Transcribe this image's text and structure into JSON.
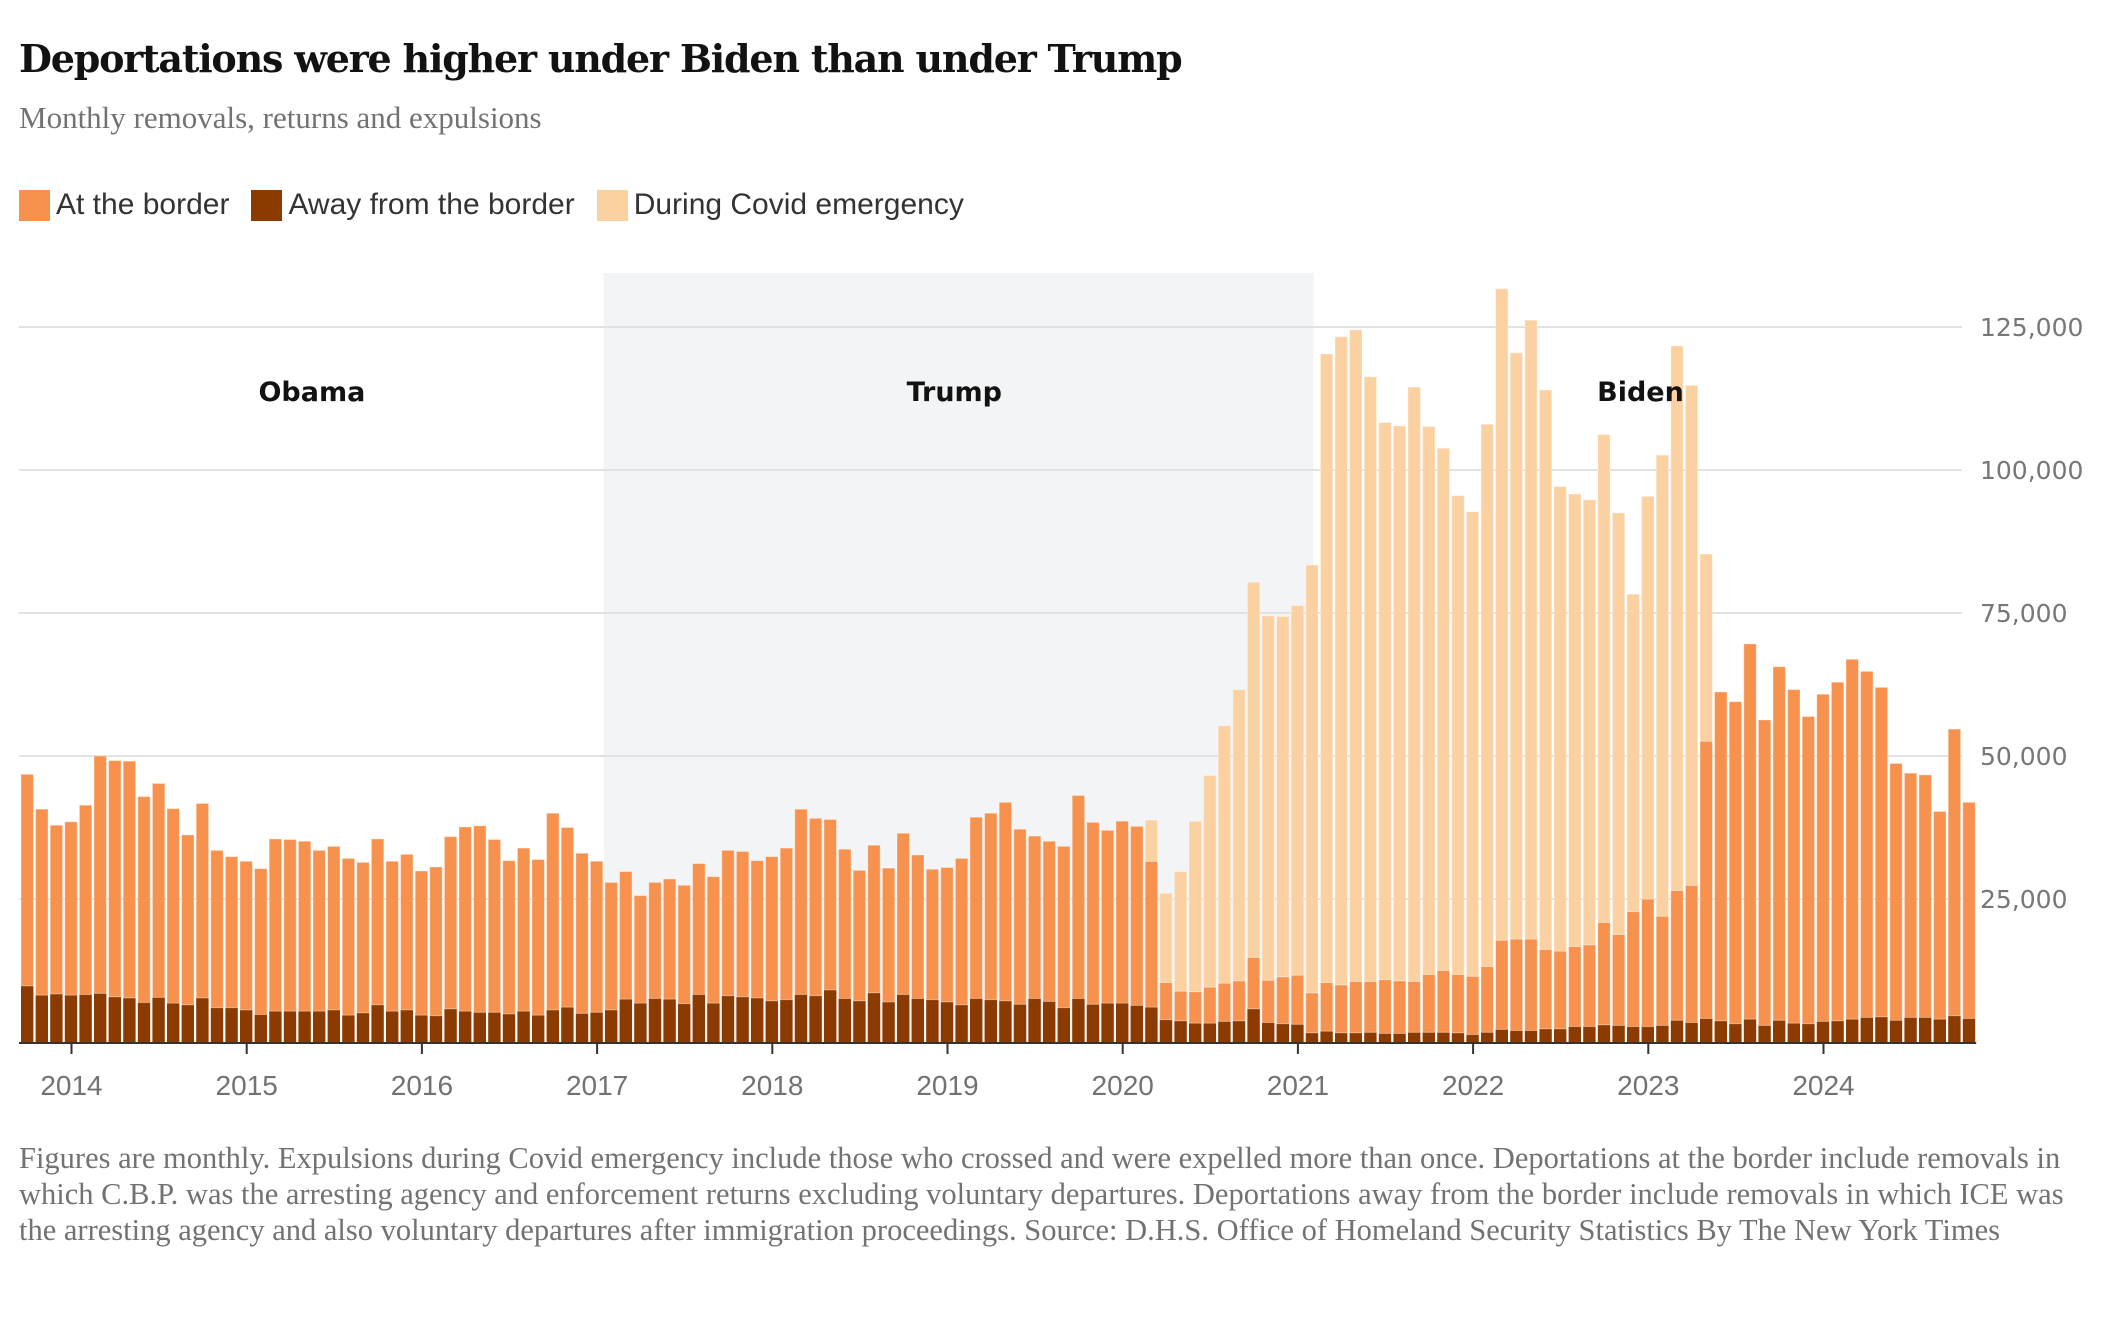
{
  "header": {
    "title": "Deportations were higher under Biden than under Trump",
    "subtitle": "Monthly removals, returns and expulsions"
  },
  "legend": [
    {
      "key": "border",
      "label": "At the border",
      "color": "#f6914e"
    },
    {
      "key": "away",
      "label": "Away from the border",
      "color": "#8c3b00"
    },
    {
      "key": "covid",
      "label": "During Covid emergency",
      "color": "#fbd1a2"
    }
  ],
  "footer": {
    "note": "Figures are monthly. Expulsions during Covid emergency include those who crossed and were expelled more than once. Deportations at the border include removals in which C.B.P. was the arresting agency and enforcement returns excluding voluntary departures. Deportations away from the border include removals in which ICE was the arresting agency and also voluntary departures after immigration proceedings.",
    "source": "Source: D.H.S. Office of Homeland Security Statistics",
    "credit": "By The New York Times"
  },
  "chart_data": {
    "type": "bar",
    "stacked": true,
    "title": "Deportations were higher under Biden than under Trump",
    "subtitle": "Monthly removals, returns and expulsions",
    "xlabel": "",
    "ylabel": "",
    "start_month": "2013-10",
    "end_month": "2024-11",
    "ylim": [
      0,
      125000
    ],
    "yticks": [
      25000,
      50000,
      75000,
      100000,
      125000
    ],
    "ytick_labels": [
      "25,000",
      "50,000",
      "75,000",
      "100,000",
      "125,000"
    ],
    "xtick_labels": [
      "2014",
      "2015",
      "2016",
      "2017",
      "2018",
      "2019",
      "2020",
      "2021",
      "2022",
      "2023",
      "2024"
    ],
    "grid": true,
    "legend_position": "top-left",
    "eras": [
      {
        "label": "Obama",
        "start": "2013-10",
        "end": "2017-01",
        "shaded": false
      },
      {
        "label": "Trump",
        "start": "2017-02",
        "end": "2021-01",
        "shaded": true,
        "shade_color": "#f3f4f6"
      },
      {
        "label": "Biden",
        "start": "2021-02",
        "end": "2024-11",
        "shaded": false
      }
    ],
    "series": [
      {
        "name": "Away from the border",
        "key": "away",
        "color": "#8c3b00",
        "values": [
          9800,
          8200,
          8400,
          8200,
          8300,
          8500,
          7900,
          7700,
          6900,
          7800,
          6800,
          6500,
          7700,
          6000,
          6000,
          5600,
          4800,
          5400,
          5400,
          5400,
          5400,
          5600,
          4700,
          5100,
          6500,
          5400,
          5600,
          4700,
          4600,
          5800,
          5400,
          5200,
          5200,
          4900,
          5400,
          4700,
          5600,
          6100,
          5000,
          5200,
          5600,
          7500,
          6800,
          7600,
          7500,
          6700,
          8300,
          6800,
          8100,
          7900,
          7700,
          7200,
          7400,
          8300,
          8100,
          9100,
          7600,
          7200,
          8600,
          7000,
          8300,
          7600,
          7400,
          7000,
          6500,
          7600,
          7400,
          7200,
          6600,
          7600,
          7100,
          6000,
          7600,
          6600,
          6800,
          6800,
          6400,
          6100,
          3900,
          3700,
          3300,
          3300,
          3600,
          3700,
          5800,
          3400,
          3200,
          3100,
          1600,
          1900,
          1600,
          1600,
          1700,
          1500,
          1500,
          1700,
          1700,
          1700,
          1600,
          1300,
          1700,
          2200,
          2000,
          2000,
          2300,
          2300,
          2700,
          2700,
          3000,
          2900,
          2700,
          2700,
          2900,
          3800,
          3400,
          4100,
          3700,
          3200,
          4000,
          2900,
          3800,
          3300,
          3200,
          3600,
          3700,
          4000,
          4300,
          4400,
          3800,
          4300,
          4300,
          4000,
          4600,
          4100
        ]
      },
      {
        "name": "At the border",
        "key": "border",
        "color": "#f6914e",
        "values": [
          37000,
          32500,
          29500,
          30300,
          33100,
          41500,
          41300,
          41400,
          36000,
          37400,
          34000,
          29700,
          34000,
          27500,
          26400,
          26000,
          25500,
          30100,
          30000,
          29700,
          28100,
          28600,
          27400,
          26300,
          29000,
          26200,
          27200,
          25200,
          26000,
          30100,
          32200,
          32600,
          30200,
          26800,
          28500,
          27200,
          34400,
          31400,
          28000,
          26400,
          22300,
          22300,
          18800,
          20300,
          21000,
          20700,
          22900,
          22100,
          25400,
          25400,
          24000,
          25200,
          26500,
          32400,
          31000,
          29800,
          26100,
          22800,
          25800,
          23400,
          28200,
          25100,
          22800,
          23500,
          25600,
          31700,
          32600,
          34700,
          30600,
          28400,
          28000,
          28200,
          35500,
          31800,
          30200,
          31800,
          31300,
          25500,
          6500,
          5200,
          5500,
          6300,
          6700,
          7000,
          9000,
          7400,
          8200,
          8600,
          7000,
          8500,
          8400,
          9000,
          8900,
          9400,
          9200,
          8900,
          10100,
          10800,
          10200,
          10200,
          11500,
          15600,
          16000,
          16000,
          13900,
          13600,
          14000,
          14300,
          17900,
          15900,
          20100,
          22300,
          19100,
          22700,
          24000,
          48500,
          57500,
          56300,
          65600,
          53400,
          61800,
          58300,
          53700,
          57200,
          59200,
          62900,
          60500,
          57600,
          44900,
          42700,
          42400,
          36300,
          50100,
          37800
        ]
      },
      {
        "name": "During Covid emergency",
        "key": "covid",
        "color": "#fbd1a2",
        "values": [
          0,
          0,
          0,
          0,
          0,
          0,
          0,
          0,
          0,
          0,
          0,
          0,
          0,
          0,
          0,
          0,
          0,
          0,
          0,
          0,
          0,
          0,
          0,
          0,
          0,
          0,
          0,
          0,
          0,
          0,
          0,
          0,
          0,
          0,
          0,
          0,
          0,
          0,
          0,
          0,
          0,
          0,
          0,
          0,
          0,
          0,
          0,
          0,
          0,
          0,
          0,
          0,
          0,
          0,
          0,
          0,
          0,
          0,
          0,
          0,
          0,
          0,
          0,
          0,
          0,
          0,
          0,
          0,
          0,
          0,
          0,
          0,
          0,
          0,
          0,
          0,
          0,
          7200,
          15600,
          20900,
          29800,
          37000,
          45000,
          50900,
          65600,
          63700,
          63000,
          64600,
          74800,
          109900,
          113300,
          113900,
          105700,
          97400,
          97000,
          103900,
          95800,
          91300,
          83700,
          81200,
          94800,
          113900,
          102500,
          108200,
          97800,
          81200,
          79100,
          77800,
          85300,
          73700,
          55500,
          70400,
          80600,
          95200,
          87400,
          32700,
          0,
          0,
          0,
          0,
          0,
          0,
          0,
          0,
          0,
          0,
          0,
          0,
          0,
          0,
          0,
          0,
          0,
          0
        ]
      }
    ]
  }
}
